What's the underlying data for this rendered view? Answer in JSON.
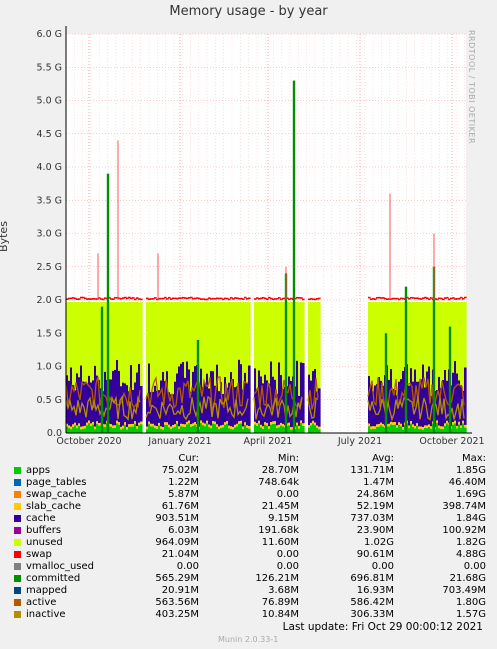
{
  "title": "Memory usage - by year",
  "ylabel": "Bytes",
  "credit": "RRDTOOL / TOBI OETIKER",
  "munin_version": "Munin 2.0.33-1",
  "last_update": "Last update:  Fri Oct 29 00:00:12 2021",
  "headers": {
    "cur": "Cur:",
    "min": "Min:",
    "avg": "Avg:",
    "max": "Max:"
  },
  "legend": [
    {
      "name": "apps",
      "color": "#00cc00",
      "cur": "75.02M",
      "min": "28.70M",
      "avg": "131.71M",
      "max": "1.85G"
    },
    {
      "name": "page_tables",
      "color": "#0066b3",
      "cur": "1.22M",
      "min": "748.64k",
      "avg": "1.47M",
      "max": "46.40M"
    },
    {
      "name": "swap_cache",
      "color": "#ff8000",
      "cur": "5.87M",
      "min": "0.00",
      "avg": "24.86M",
      "max": "1.69G"
    },
    {
      "name": "slab_cache",
      "color": "#ffcc00",
      "cur": "61.76M",
      "min": "21.45M",
      "avg": "52.19M",
      "max": "398.74M"
    },
    {
      "name": "cache",
      "color": "#330099",
      "cur": "903.51M",
      "min": "9.15M",
      "avg": "737.03M",
      "max": "1.84G"
    },
    {
      "name": "buffers",
      "color": "#990099",
      "cur": "6.03M",
      "min": "191.68k",
      "avg": "23.90M",
      "max": "100.92M"
    },
    {
      "name": "unused",
      "color": "#ccff00",
      "cur": "964.09M",
      "min": "11.60M",
      "avg": "1.02G",
      "max": "1.82G"
    },
    {
      "name": "swap",
      "color": "#ff0000",
      "cur": "21.04M",
      "min": "0.00",
      "avg": "90.61M",
      "max": "4.88G"
    },
    {
      "name": "vmalloc_used",
      "color": "#808080",
      "cur": "0.00",
      "min": "0.00",
      "avg": "0.00",
      "max": "0.00"
    },
    {
      "name": "committed",
      "color": "#008f00",
      "cur": "565.29M",
      "min": "126.21M",
      "avg": "696.81M",
      "max": "21.68G"
    },
    {
      "name": "mapped",
      "color": "#00487d",
      "cur": "20.91M",
      "min": "3.68M",
      "avg": "16.93M",
      "max": "703.49M"
    },
    {
      "name": "active",
      "color": "#b35a00",
      "cur": "563.56M",
      "min": "76.89M",
      "avg": "586.42M",
      "max": "1.80G"
    },
    {
      "name": "inactive",
      "color": "#b38f00",
      "cur": "403.25M",
      "min": "10.84M",
      "avg": "306.33M",
      "max": "1.57G"
    }
  ],
  "chart_data": {
    "type": "area",
    "title": "Memory usage - by year",
    "ylabel": "Bytes",
    "yticks": [
      "0.0",
      "0.5 G",
      "1.0 G",
      "1.5 G",
      "2.0 G",
      "2.5 G",
      "3.0 G",
      "3.5 G",
      "4.0 G",
      "4.5 G",
      "5.0 G",
      "5.5 G",
      "6.0 G"
    ],
    "ylim": [
      0,
      6.0
    ],
    "xticks": [
      "October 2020",
      "January 2021",
      "April 2021",
      "July 2021",
      "October 2021"
    ],
    "gaps": [
      [
        0.263,
        0.285
      ],
      [
        0.555,
        0.57
      ],
      [
        0.74,
        0.78
      ],
      [
        0.82,
        1.0
      ]
    ],
    "peaks_G": {
      "committed_max": 5.3,
      "committed_second": 3.9,
      "swap_typical": 2.0
    }
  }
}
